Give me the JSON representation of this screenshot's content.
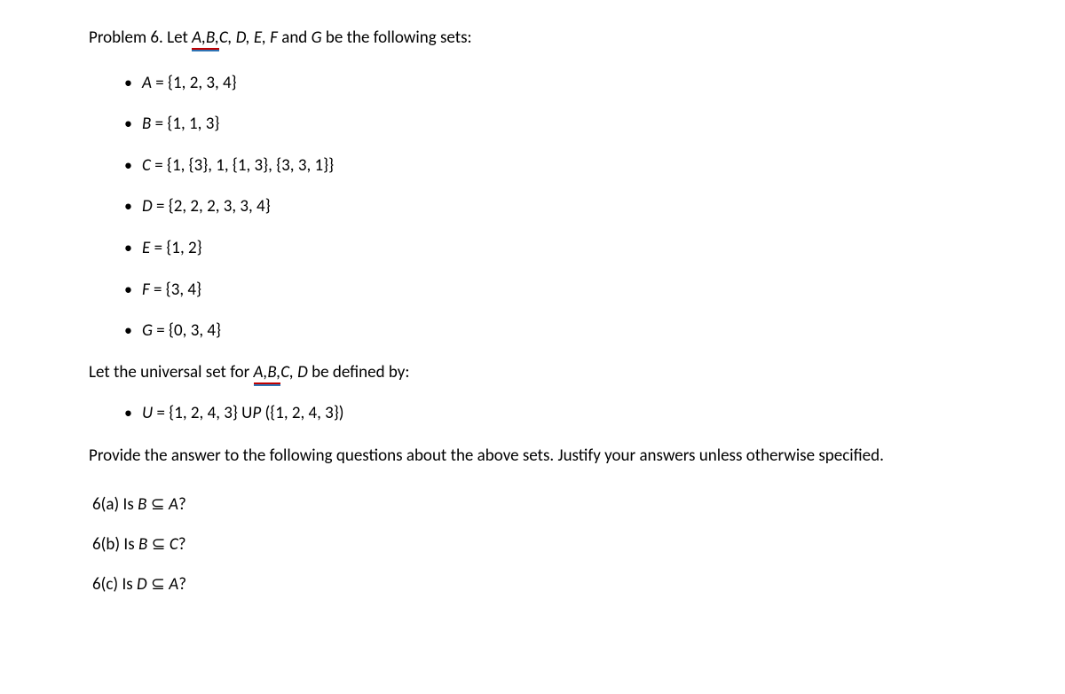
{
  "intro": {
    "prefix": "Problem 6. Let ",
    "spellcheck_text": "A,B,",
    "rest_italic": "C, D, E, F",
    "and_text": " and ",
    "g_text": "G",
    "suffix": " be the following sets:"
  },
  "sets": [
    {
      "label": "A",
      "value": " = {1, 2, 3, 4}"
    },
    {
      "label": "B",
      "value": " = {1, 1, 3}"
    },
    {
      "label": "C",
      "value": " = {1, {3}, 1, {1, 3}, {3, 3, 1}}"
    },
    {
      "label": "D",
      "value": " = {2, 2, 2, 3, 3, 4}"
    },
    {
      "label": "E",
      "value": " = {1, 2}"
    },
    {
      "label": "F",
      "value": " = {3, 4}"
    },
    {
      "label": "G",
      "value": " = {0, 3, 4}"
    }
  ],
  "universal_intro": {
    "prefix": "Let the universal set for ",
    "spellcheck_text": "A,B,",
    "rest_italic": "C, D",
    "suffix": " be defined by:"
  },
  "universal_def": {
    "label": "U",
    "value_prefix": " = {1, 2, 4, 3} U",
    "powerset_italic": "P",
    "value_suffix": " ({1, 2, 4, 3})"
  },
  "instructions": "Provide the answer to the following questions about the above sets. Justify your answers unless otherwise specified.",
  "questions": [
    {
      "num": "6(a)",
      "text": "  Is  ",
      "expr_left": "B",
      "rel": " ⊆ ",
      "expr_right": "A",
      "q": "?"
    },
    {
      "num": "6(b)",
      "text": "  Is  ",
      "expr_left": "B",
      "rel": " ⊆ ",
      "expr_right": "C",
      "q": "?"
    },
    {
      "num": "6(c)",
      "text": " Is ",
      "expr_left": "D",
      "rel": " ⊆ ",
      "expr_right": "A",
      "q": "?"
    }
  ]
}
